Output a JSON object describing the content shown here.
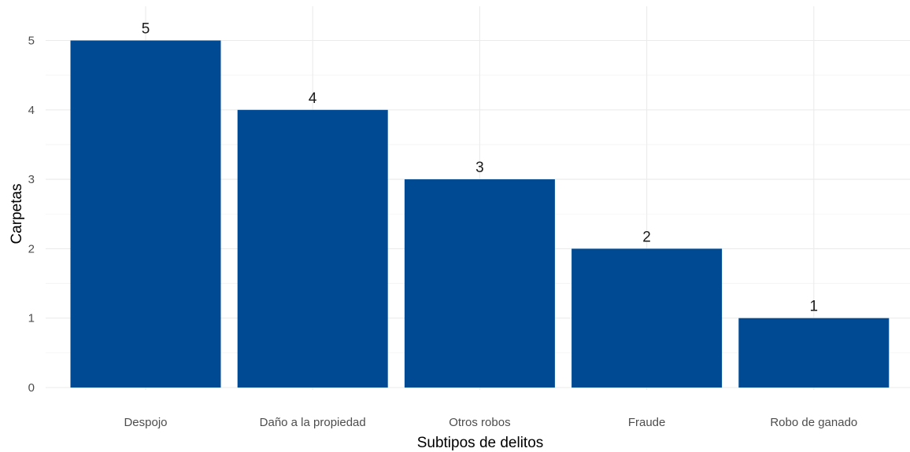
{
  "chart_data": {
    "type": "bar",
    "categories": [
      "Despojo",
      "Daño a la propiedad",
      "Otros robos",
      "Fraude",
      "Robo de ganado"
    ],
    "values": [
      5,
      4,
      3,
      2,
      1
    ],
    "data_labels": [
      "5",
      "4",
      "3",
      "2",
      "1"
    ],
    "xlabel": "Subtipos de delitos",
    "ylabel": "Carpetas",
    "ylim": [
      0,
      5.4
    ],
    "yticks": [
      0,
      1,
      2,
      3,
      4,
      5
    ],
    "grid": true,
    "legend": "none",
    "bar_color": "#004a94"
  }
}
